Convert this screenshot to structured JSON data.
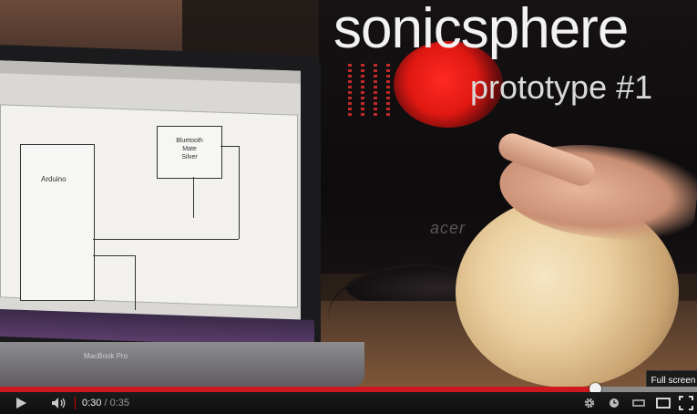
{
  "video": {
    "overlay_title": "sonicsphere",
    "overlay_subtitle": "prototype #1",
    "monitor_brand": "acer",
    "laptop_label": "MacBook Pro",
    "schematic": {
      "arduino_label": "Arduino",
      "bluetooth_label": "Bluetooth\nMate\nSilver"
    }
  },
  "player": {
    "progress_percent": 85.4,
    "buffered_percent": 100,
    "current_time": "0:30",
    "separator": " / ",
    "duration": "0:35",
    "tooltip": "Full screen"
  },
  "icons": {
    "play": "play-icon",
    "volume": "volume-icon",
    "settings": "gear-icon",
    "watch_later": "clock-icon",
    "small_player": "small-player-icon",
    "large_player": "large-player-icon",
    "fullscreen": "fullscreen-icon"
  },
  "colors": {
    "played": "#cc181e",
    "controls_bg": "#1b1b1b",
    "scrubber": "#f1f1f1"
  }
}
